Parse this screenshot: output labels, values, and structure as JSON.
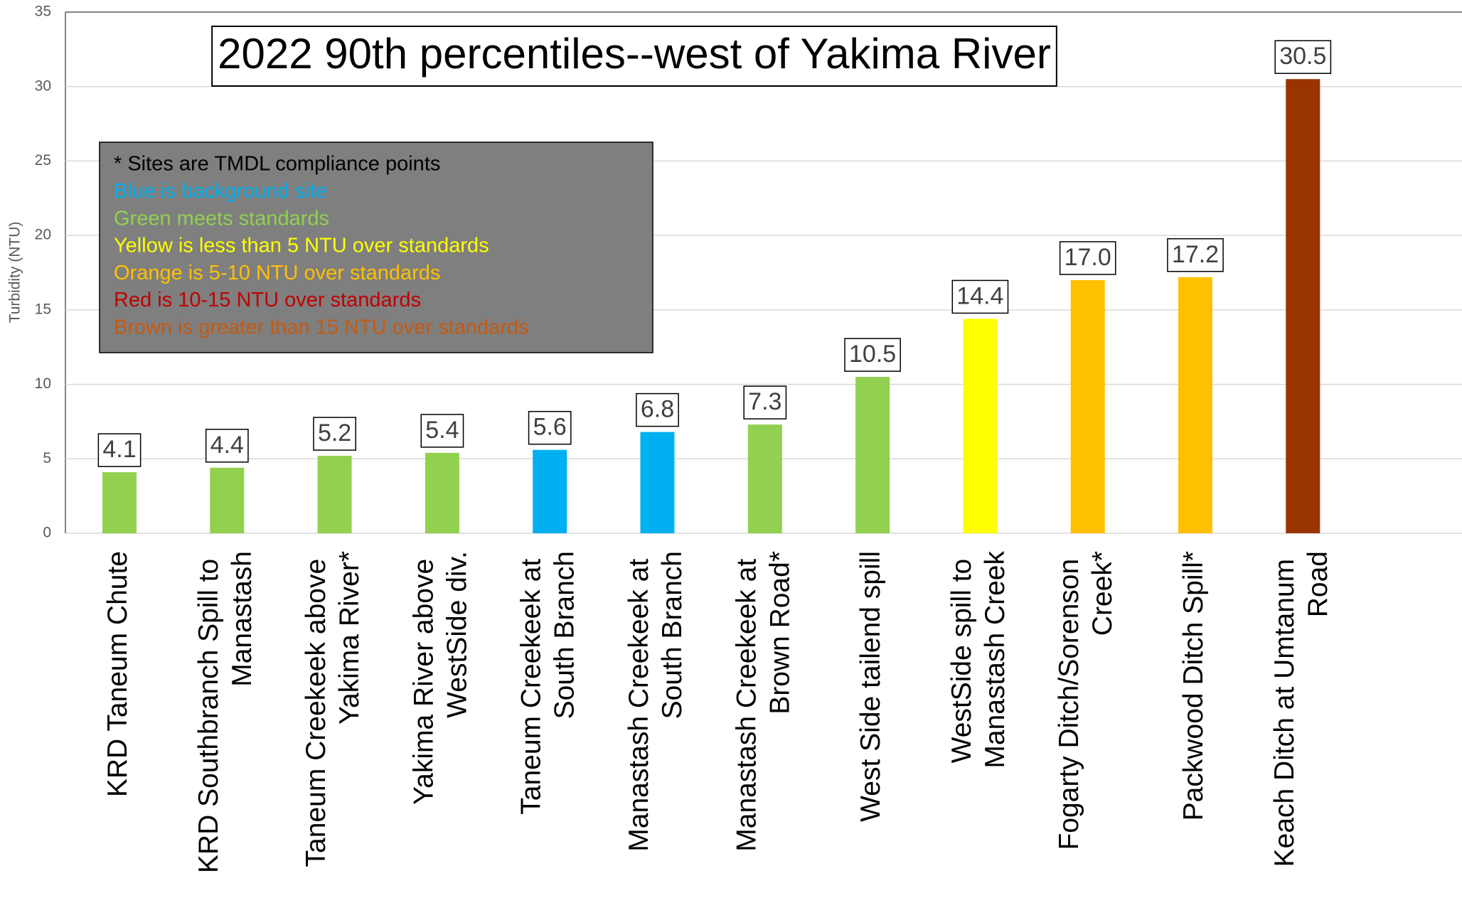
{
  "chart_data": {
    "type": "bar",
    "title": "2022 90th percentiles--west of Yakima River",
    "y_label": "Turbidity (NTU)",
    "categories": [
      "KRD Taneum Chute",
      "KRD Southbranch Spill to Manastash",
      "Taneum Creekeek above Yakima River*",
      "Yakima River above WestSide div.",
      "Taneum Creekeek at South Branch",
      "Manastash Creekeek at South Branch",
      "Manastash Creekeek at Brown Road*",
      "West Side tailend spill",
      "WestSide spill to Manastash Creek",
      "Fogarty Ditch/Sorenson Creek*",
      "Packwood Ditch Spill*",
      "Keach Ditch at Umtanum Road"
    ],
    "values": [
      4.1,
      4.4,
      5.2,
      5.4,
      5.6,
      6.8,
      7.3,
      10.5,
      14.4,
      17.0,
      17.2,
      30.5
    ],
    "value_labels": [
      "4.1",
      "4.4",
      "5.2",
      "5.4",
      "5.6",
      "6.8",
      "7.3",
      "10.5",
      "14.4",
      "17.0",
      "17.2",
      "30.5"
    ],
    "colors": [
      "#92d050",
      "#92d050",
      "#92d050",
      "#92d050",
      "#00b0f0",
      "#00b0f0",
      "#92d050",
      "#92d050",
      "#ffff00",
      "#ffc000",
      "#ffc000",
      "#993300"
    ],
    "ylim": [
      0,
      35
    ],
    "yticks": [
      0,
      5,
      10,
      15,
      20,
      25,
      30,
      35
    ],
    "grid": true,
    "legend_notes": [
      {
        "text": "* Sites are TMDL compliance points",
        "color": "#000000"
      },
      {
        "text": "Blue is background site",
        "color": "#00b0f0"
      },
      {
        "text": "Green meets standards",
        "color": "#92d050"
      },
      {
        "text": "Yellow is less than 5 NTU over standards",
        "color": "#ffff00"
      },
      {
        "text": "Orange is 5-10 NTU over standards",
        "color": "#ffc000"
      },
      {
        "text": "Red is 10-15 NTU over standards",
        "color": "#c00000"
      },
      {
        "text": "Brown is greater than 15 NTU over standards",
        "color": "#c55a11"
      }
    ]
  }
}
